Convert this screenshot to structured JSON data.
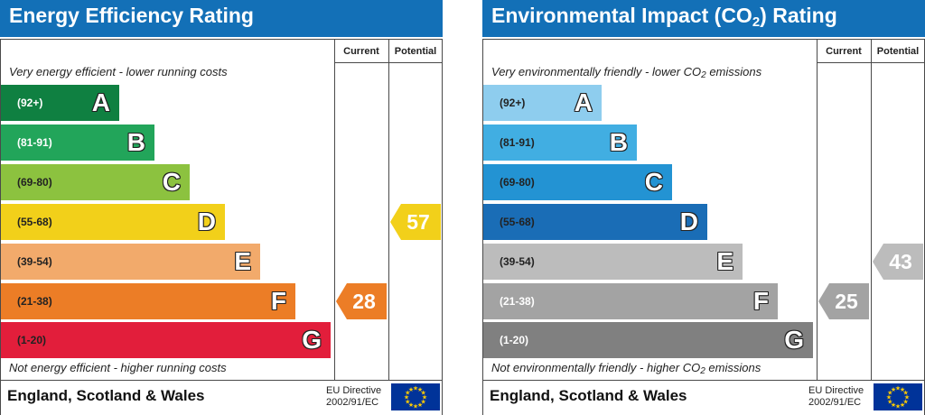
{
  "chart_data": [
    {
      "type": "bar",
      "title": "Energy Efficiency Rating",
      "columns": [
        "Current",
        "Potential"
      ],
      "top_note": "Very energy efficient - lower running costs",
      "bottom_note": "Not energy efficient - higher running costs",
      "bands": [
        {
          "letter": "A",
          "range": "(92+)",
          "color": "#0f8041",
          "text_color": "#ffffff"
        },
        {
          "letter": "B",
          "range": "(81-91)",
          "color": "#22a55a",
          "text_color": "#ffffff"
        },
        {
          "letter": "C",
          "range": "(69-80)",
          "color": "#8cc23f",
          "text_color": "#222222"
        },
        {
          "letter": "D",
          "range": "(55-68)",
          "color": "#f2d01a",
          "text_color": "#222222"
        },
        {
          "letter": "E",
          "range": "(39-54)",
          "color": "#f2aa6b",
          "text_color": "#222222"
        },
        {
          "letter": "F",
          "range": "(21-38)",
          "color": "#ec7d26",
          "text_color": "#222222"
        },
        {
          "letter": "G",
          "range": "(1-20)",
          "color": "#e21e3b",
          "text_color": "#222222"
        }
      ],
      "current": {
        "value": "28",
        "band": "F",
        "color": "#ec7d26"
      },
      "potential": {
        "value": "57",
        "band": "D",
        "color": "#f2d01a"
      },
      "footer": {
        "region": "England, Scotland & Wales",
        "directive_line1": "EU Directive",
        "directive_line2": "2002/91/EC"
      }
    },
    {
      "type": "bar",
      "title_prefix": "Environmental Impact (CO",
      "title_sub": "2",
      "title_suffix": ") Rating",
      "columns": [
        "Current",
        "Potential"
      ],
      "top_note_prefix": "Very environmentally friendly - lower CO",
      "top_note_sub": "2",
      "top_note_suffix": " emissions",
      "bottom_note_prefix": "Not environmentally friendly - higher CO",
      "bottom_note_sub": "2",
      "bottom_note_suffix": " emissions",
      "bands": [
        {
          "letter": "A",
          "range": "(92+)",
          "color": "#8ecdee",
          "text_color": "#222222"
        },
        {
          "letter": "B",
          "range": "(81-91)",
          "color": "#41aee2",
          "text_color": "#222222"
        },
        {
          "letter": "C",
          "range": "(69-80)",
          "color": "#2393d3",
          "text_color": "#222222"
        },
        {
          "letter": "D",
          "range": "(55-68)",
          "color": "#1a6db6",
          "text_color": "#222222"
        },
        {
          "letter": "E",
          "range": "(39-54)",
          "color": "#bcbcbc",
          "text_color": "#222222"
        },
        {
          "letter": "F",
          "range": "(21-38)",
          "color": "#a3a3a3",
          "text_color": "#ffffff"
        },
        {
          "letter": "G",
          "range": "(1-20)",
          "color": "#808080",
          "text_color": "#ffffff"
        }
      ],
      "current": {
        "value": "25",
        "band": "F",
        "color": "#a3a3a3"
      },
      "potential": {
        "value": "43",
        "band": "E",
        "color": "#bcbcbc"
      },
      "footer": {
        "region": "England, Scotland & Wales",
        "directive_line1": "EU Directive",
        "directive_line2": "2002/91/EC"
      }
    }
  ]
}
